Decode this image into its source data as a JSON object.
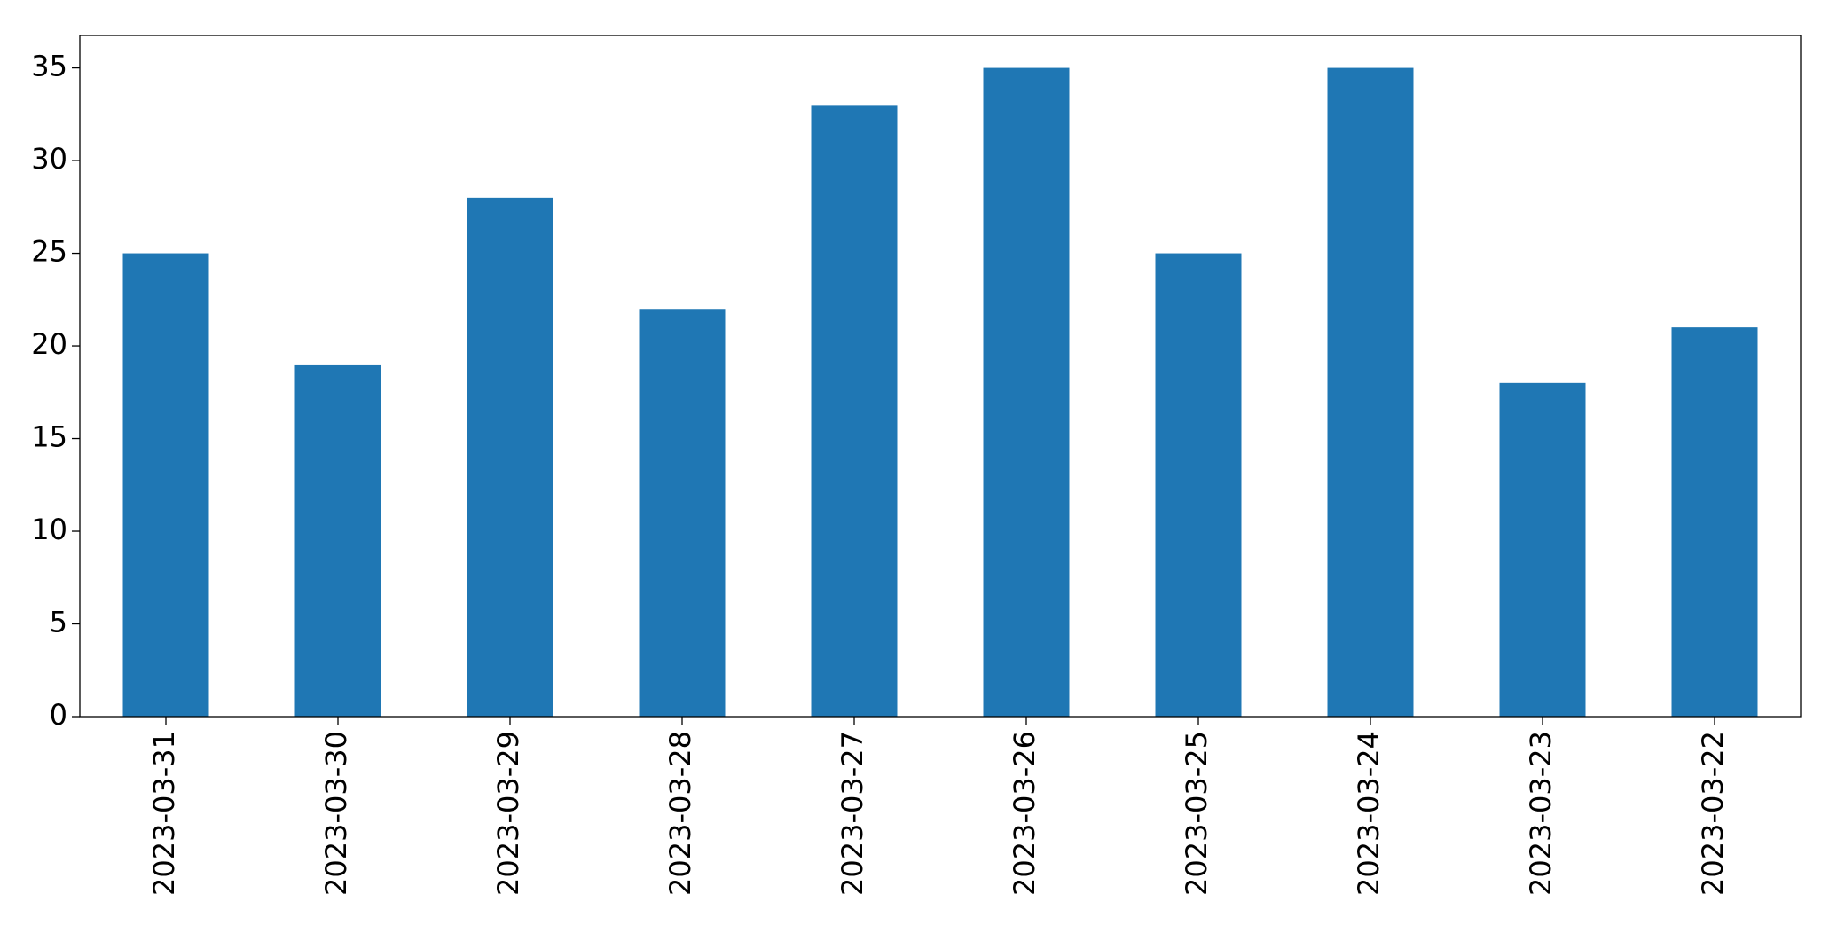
{
  "chart_data": {
    "type": "bar",
    "categories": [
      "2023-03-31",
      "2023-03-30",
      "2023-03-29",
      "2023-03-28",
      "2023-03-27",
      "2023-03-26",
      "2023-03-25",
      "2023-03-24",
      "2023-03-23",
      "2023-03-22"
    ],
    "values": [
      25,
      19,
      28,
      22,
      33,
      35,
      25,
      35,
      18,
      21
    ],
    "color": "#1f77b4",
    "ylim": [
      0,
      36.75
    ],
    "yticks": [
      0,
      5,
      10,
      15,
      20,
      25,
      30,
      35
    ],
    "grid": false
  }
}
